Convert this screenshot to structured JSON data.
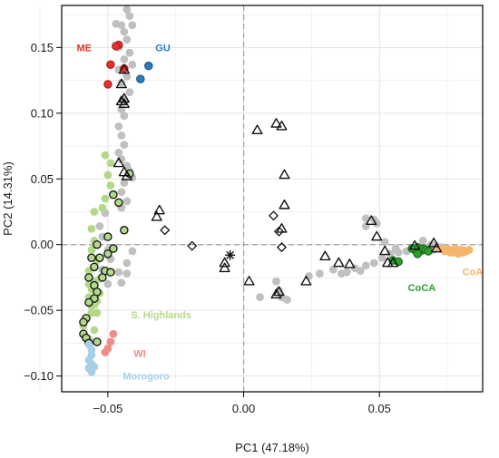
{
  "chart_data": {
    "type": "scatter",
    "title": "",
    "xlabel": "PC1 (47.18%)",
    "ylabel": "PC2 (14.31%)",
    "xlim": [
      -0.067,
      0.088
    ],
    "ylim": [
      -0.112,
      0.182
    ],
    "x_ticks": [
      {
        "value": -0.05,
        "label": "−0.05"
      },
      {
        "value": 0.0,
        "label": "0.00"
      },
      {
        "value": 0.05,
        "label": "0.05"
      }
    ],
    "y_ticks": [
      {
        "value": -0.1,
        "label": "−0.10"
      },
      {
        "value": -0.05,
        "label": "−0.05"
      },
      {
        "value": 0.0,
        "label": "0.00"
      },
      {
        "value": 0.05,
        "label": "0.05"
      },
      {
        "value": 0.1,
        "label": "0.10"
      },
      {
        "value": 0.15,
        "label": "0.15"
      }
    ],
    "grid": true,
    "reference_lines": {
      "x": 0,
      "y": 0,
      "style": "dashed",
      "color": "#9e9e9e"
    },
    "group_labels": [
      {
        "text": "ME",
        "x": -0.0615,
        "y": 0.15,
        "color": "#e8312a"
      },
      {
        "text": "GU",
        "x": -0.0325,
        "y": 0.15,
        "color": "#2e7bbf"
      },
      {
        "text": "S. Highlands",
        "x": -0.0415,
        "y": -0.0535,
        "color": "#b4d88a"
      },
      {
        "text": "WI",
        "x": -0.0405,
        "y": -0.0825,
        "color": "#f08b86"
      },
      {
        "text": "Morogoro",
        "x": -0.0445,
        "y": -0.1,
        "color": "#a7cfe8"
      },
      {
        "text": "CoCA",
        "x": 0.0605,
        "y": -0.0325,
        "color": "#2ca02c"
      },
      {
        "text": "CoA",
        "x": 0.0805,
        "y": -0.0205,
        "color": "#f5b66b"
      }
    ],
    "series": [
      {
        "group": "background",
        "marker": "circle",
        "color": "#c0c0c0",
        "stroke": "none",
        "points": [
          [
            -0.043,
            0.179
          ],
          [
            -0.042,
            0.174
          ],
          [
            -0.047,
            0.168
          ],
          [
            -0.045,
            0.167
          ],
          [
            -0.041,
            0.167
          ],
          [
            -0.044,
            0.162
          ],
          [
            -0.043,
            0.156
          ],
          [
            -0.046,
            0.15
          ],
          [
            -0.042,
            0.146
          ],
          [
            -0.044,
            0.141
          ],
          [
            -0.041,
            0.137
          ],
          [
            -0.046,
            0.133
          ],
          [
            -0.043,
            0.128
          ],
          [
            -0.045,
            0.123
          ],
          [
            -0.042,
            0.116
          ],
          [
            -0.044,
            0.11
          ],
          [
            -0.045,
            0.103
          ],
          [
            -0.044,
            0.098
          ],
          [
            -0.046,
            0.09
          ],
          [
            -0.045,
            0.083
          ],
          [
            -0.044,
            0.076
          ],
          [
            -0.046,
            0.07
          ],
          [
            -0.045,
            0.065
          ],
          [
            -0.043,
            0.06
          ],
          [
            -0.042,
            0.056
          ],
          [
            -0.041,
            0.051
          ],
          [
            -0.044,
            0.047
          ],
          [
            -0.045,
            0.04
          ],
          [
            -0.043,
            0.033
          ],
          [
            -0.045,
            0.028
          ],
          [
            -0.051,
            0.024
          ],
          [
            -0.053,
            0.014
          ],
          [
            -0.052,
            0.006
          ],
          [
            -0.05,
            -0.004
          ],
          [
            -0.049,
            -0.011
          ],
          [
            -0.052,
            -0.019
          ],
          [
            -0.046,
            -0.021
          ],
          [
            -0.045,
            -0.029
          ],
          [
            -0.041,
            -0.005
          ],
          [
            -0.043,
            -0.014
          ],
          [
            -0.043,
            -0.022
          ],
          [
            -0.05,
            -0.03
          ],
          [
            0.013,
            -0.035
          ],
          [
            0.014,
            -0.04
          ],
          [
            0.016,
            -0.042
          ],
          [
            0.006,
            -0.04
          ],
          [
            0.012,
            -0.028
          ],
          [
            0.024,
            -0.024
          ],
          [
            0.028,
            -0.022
          ],
          [
            0.033,
            -0.019
          ],
          [
            0.036,
            -0.022
          ],
          [
            0.038,
            -0.021
          ],
          [
            0.041,
            -0.018
          ],
          [
            0.043,
            -0.02
          ],
          [
            0.045,
            -0.016
          ],
          [
            0.048,
            -0.014
          ],
          [
            0.051,
            -0.01
          ],
          [
            0.054,
            -0.007
          ],
          [
            0.057,
            -0.006
          ],
          [
            0.06,
            -0.005
          ],
          [
            0.045,
            0.02
          ],
          [
            0.048,
            0.019
          ],
          [
            0.045,
            0.014
          ],
          [
            0.049,
            0.016
          ],
          [
            0.066,
            0.003
          ],
          [
            0.069,
            0.0
          ],
          [
            0.071,
            -0.001
          ],
          [
            0.073,
            -0.002
          ],
          [
            0.07,
            -0.004
          ],
          [
            0.068,
            -0.003
          ],
          [
            0.052,
            0.002
          ],
          [
            0.056,
            -0.003
          ]
        ]
      },
      {
        "group": "S. Highlands",
        "marker": "circle",
        "color": "#b4d88a",
        "stroke": "none",
        "points": [
          [
            -0.051,
            0.068
          ],
          [
            -0.049,
            0.062
          ],
          [
            -0.05,
            0.053
          ],
          [
            -0.049,
            0.045
          ],
          [
            -0.051,
            0.035
          ],
          [
            -0.052,
            0.028
          ],
          [
            -0.055,
            0.025
          ],
          [
            -0.056,
            0.012
          ],
          [
            -0.055,
            0.003
          ],
          [
            -0.056,
            -0.004
          ],
          [
            -0.054,
            -0.012
          ],
          [
            -0.057,
            -0.02
          ],
          [
            -0.055,
            -0.028
          ],
          [
            -0.056,
            -0.034
          ],
          [
            -0.057,
            -0.04
          ],
          [
            -0.055,
            -0.046
          ],
          [
            -0.056,
            -0.052
          ],
          [
            -0.058,
            -0.057
          ],
          [
            -0.059,
            -0.062
          ],
          [
            -0.055,
            -0.065
          ],
          [
            -0.057,
            -0.072
          ],
          [
            -0.053,
            -0.026
          ],
          [
            -0.053,
            -0.037
          ],
          [
            -0.054,
            -0.043
          ],
          [
            -0.056,
            -0.047
          ],
          [
            -0.057,
            -0.03
          ],
          [
            -0.054,
            -0.052
          ]
        ]
      },
      {
        "group": "S. Highlands (outlined)",
        "marker": "circle",
        "color": "#b4d88a",
        "stroke": "#111111",
        "points": [
          [
            -0.042,
            0.054
          ],
          [
            -0.048,
            0.038
          ],
          [
            -0.05,
            0.006
          ],
          [
            -0.054,
            0.0
          ],
          [
            -0.048,
            -0.003
          ],
          [
            -0.05,
            -0.007
          ],
          [
            -0.053,
            -0.01
          ],
          [
            -0.056,
            -0.01
          ],
          [
            -0.055,
            -0.017
          ],
          [
            -0.051,
            -0.02
          ],
          [
            -0.049,
            -0.021
          ],
          [
            -0.052,
            -0.025
          ],
          [
            -0.057,
            -0.025
          ],
          [
            -0.055,
            -0.031
          ],
          [
            -0.054,
            -0.036
          ],
          [
            -0.055,
            -0.041
          ],
          [
            -0.057,
            -0.044
          ],
          [
            -0.058,
            -0.056
          ],
          [
            -0.059,
            -0.059
          ],
          [
            -0.059,
            -0.068
          ],
          [
            -0.058,
            -0.071
          ],
          [
            -0.057,
            -0.075
          ],
          [
            -0.054,
            -0.074
          ],
          [
            -0.044,
            0.011
          ],
          [
            -0.046,
            0.032
          ]
        ]
      },
      {
        "group": "ME",
        "marker": "circle",
        "color": "#e8312a",
        "stroke": "#b02020",
        "points": [
          [
            -0.046,
            0.152
          ],
          [
            -0.047,
            0.151
          ],
          [
            -0.049,
            0.137
          ],
          [
            -0.044,
            0.134
          ],
          [
            -0.05,
            0.122
          ]
        ]
      },
      {
        "group": "GU",
        "marker": "circle",
        "color": "#2e7bbf",
        "stroke": "#1d5a8f",
        "points": [
          [
            -0.035,
            0.136
          ],
          [
            -0.038,
            0.126
          ]
        ]
      },
      {
        "group": "WI",
        "marker": "circle",
        "color": "#f08b86",
        "stroke": "none",
        "points": [
          [
            -0.048,
            -0.068
          ],
          [
            -0.049,
            -0.074
          ],
          [
            -0.05,
            -0.079
          ],
          [
            -0.051,
            -0.082
          ]
        ]
      },
      {
        "group": "Morogoro",
        "marker": "circle",
        "color": "#a7cfe8",
        "stroke": "none",
        "points": [
          [
            -0.057,
            -0.076
          ],
          [
            -0.056,
            -0.08
          ],
          [
            -0.056,
            -0.084
          ],
          [
            -0.057,
            -0.088
          ],
          [
            -0.056,
            -0.091
          ],
          [
            -0.057,
            -0.094
          ],
          [
            -0.056,
            -0.097
          ],
          [
            -0.055,
            -0.093
          ]
        ]
      },
      {
        "group": "CoCA",
        "marker": "circle",
        "color": "#2ca02c",
        "stroke": "#1d6e1d",
        "points": [
          [
            0.055,
            -0.012
          ],
          [
            0.057,
            -0.013
          ],
          [
            0.063,
            -0.004
          ],
          [
            0.064,
            -0.002
          ],
          [
            0.065,
            -0.005
          ],
          [
            0.066,
            -0.003
          ],
          [
            0.067,
            -0.004
          ],
          [
            0.062,
            -0.003
          ],
          [
            0.068,
            -0.005
          ],
          [
            0.064,
            -0.007
          ],
          [
            0.081,
            -0.005
          ]
        ]
      },
      {
        "group": "CoA",
        "marker": "circle",
        "color": "#f5b66b",
        "stroke": "none",
        "points": [
          [
            0.072,
            -0.003
          ],
          [
            0.074,
            -0.004
          ],
          [
            0.075,
            -0.003
          ],
          [
            0.076,
            -0.005
          ],
          [
            0.077,
            -0.004
          ],
          [
            0.078,
            -0.006
          ],
          [
            0.079,
            -0.005
          ],
          [
            0.08,
            -0.004
          ],
          [
            0.081,
            -0.006
          ],
          [
            0.082,
            -0.005
          ],
          [
            0.083,
            -0.004
          ],
          [
            0.078,
            -0.003
          ],
          [
            0.076,
            -0.006
          ],
          [
            0.074,
            -0.005
          ],
          [
            0.079,
            -0.007
          ],
          [
            0.077,
            -0.006
          ]
        ]
      },
      {
        "group": "triangles",
        "marker": "triangle",
        "color": "none",
        "stroke": "#111111",
        "points": [
          [
            -0.044,
            0.133
          ],
          [
            -0.045,
            0.122
          ],
          [
            -0.045,
            0.109
          ],
          [
            -0.044,
            0.111
          ],
          [
            -0.044,
            0.107
          ],
          [
            -0.046,
            0.062
          ],
          [
            -0.044,
            0.055
          ],
          [
            -0.043,
            0.052
          ],
          [
            -0.031,
            0.026
          ],
          [
            -0.032,
            0.021
          ],
          [
            -0.007,
            -0.014
          ],
          [
            -0.007,
            -0.018
          ],
          [
            0.005,
            0.087
          ],
          [
            0.012,
            0.092
          ],
          [
            0.014,
            0.09
          ],
          [
            0.015,
            0.053
          ],
          [
            0.015,
            0.03
          ],
          [
            0.014,
            0.012
          ],
          [
            0.002,
            -0.028
          ],
          [
            0.013,
            -0.036
          ],
          [
            0.012,
            -0.038
          ],
          [
            0.023,
            -0.028
          ],
          [
            0.03,
            -0.009
          ],
          [
            0.035,
            -0.014
          ],
          [
            0.039,
            -0.015
          ],
          [
            0.047,
            0.018
          ],
          [
            0.049,
            0.006
          ],
          [
            0.052,
            -0.005
          ],
          [
            0.053,
            -0.014
          ],
          [
            0.055,
            -0.014
          ],
          [
            0.063,
            -0.001
          ],
          [
            0.07,
            0.001
          ],
          [
            0.071,
            -0.003
          ]
        ]
      },
      {
        "group": "diamonds",
        "marker": "diamond",
        "color": "none",
        "stroke": "#111111",
        "points": [
          [
            -0.029,
            0.011
          ],
          [
            -0.019,
            -0.001
          ],
          [
            0.011,
            0.022
          ],
          [
            0.013,
            0.01
          ],
          [
            0.014,
            -0.002
          ]
        ]
      },
      {
        "group": "star",
        "marker": "asterisk",
        "color": "none",
        "stroke": "#111111",
        "points": [
          [
            -0.005,
            -0.008
          ]
        ]
      }
    ]
  }
}
